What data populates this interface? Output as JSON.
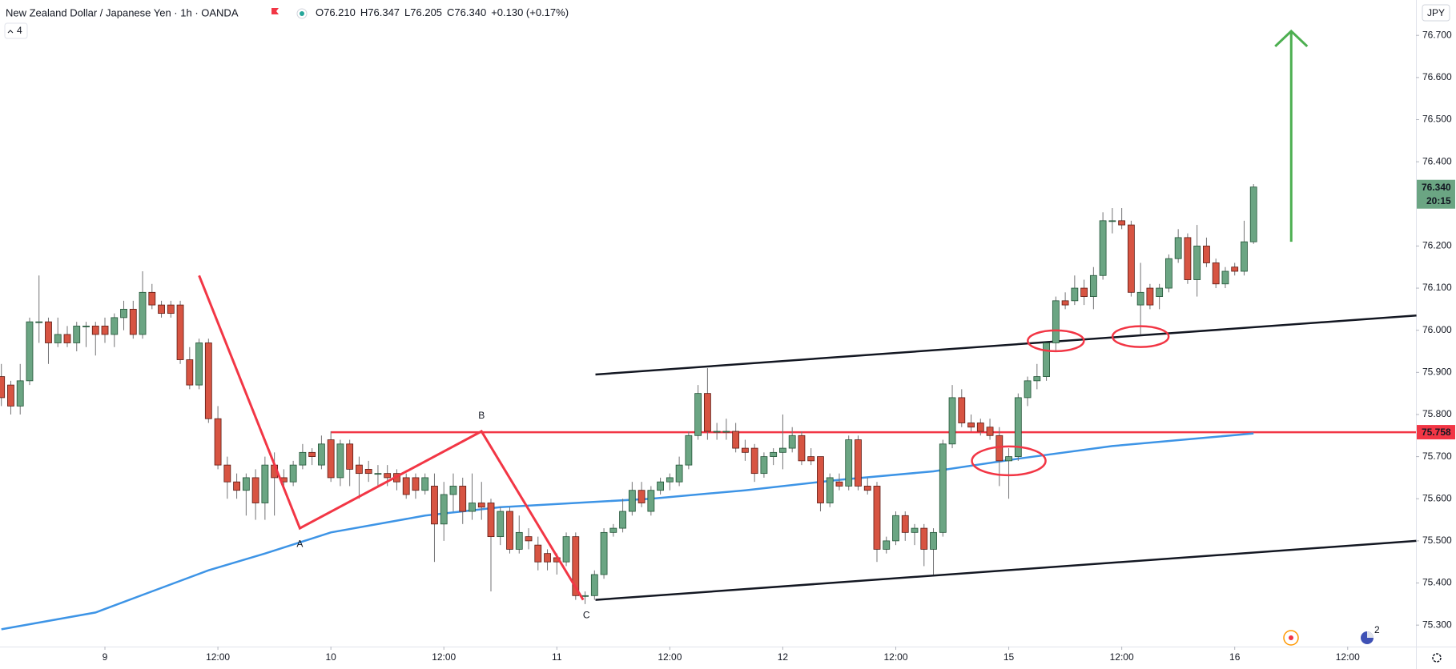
{
  "chart_data": {
    "type": "candlestick",
    "title": "New Zealand Dollar / Japanese Yen · 1h · OANDA",
    "legend_values": [
      "O76.210",
      "H76.347",
      "L76.205",
      "C76.340",
      "+0.130 (+0.17%)"
    ],
    "currency": "JPY",
    "indicator_count": 4,
    "up_color": "#6ba583",
    "up_border": "#225437",
    "down_color": "#d75442",
    "down_border": "#5b1a13",
    "wick_color": "#737375",
    "grid": false,
    "ohlc": [
      [
        75.89,
        75.92,
        75.82,
        75.84
      ],
      [
        75.87,
        75.88,
        75.8,
        75.82
      ],
      [
        75.82,
        75.92,
        75.8,
        75.88
      ],
      [
        75.88,
        76.03,
        75.87,
        76.02
      ],
      [
        76.02,
        76.13,
        75.97,
        76.02
      ],
      [
        76.02,
        76.03,
        75.92,
        75.97
      ],
      [
        75.97,
        76.03,
        75.96,
        75.99
      ],
      [
        75.99,
        76.01,
        75.96,
        75.97
      ],
      [
        75.97,
        76.02,
        75.95,
        76.01
      ],
      [
        76.01,
        76.02,
        75.96,
        76.01
      ],
      [
        76.01,
        76.02,
        75.94,
        75.99
      ],
      [
        76.01,
        76.03,
        75.97,
        75.99
      ],
      [
        75.99,
        76.04,
        75.96,
        76.03
      ],
      [
        76.03,
        76.07,
        76.0,
        76.05
      ],
      [
        76.05,
        76.07,
        75.98,
        75.99
      ],
      [
        75.99,
        76.14,
        75.98,
        76.09
      ],
      [
        76.09,
        76.11,
        76.05,
        76.06
      ],
      [
        76.06,
        76.07,
        76.03,
        76.04
      ],
      [
        76.06,
        76.07,
        76.03,
        76.04
      ],
      [
        76.06,
        76.07,
        75.92,
        75.93
      ],
      [
        75.93,
        75.96,
        75.86,
        75.87
      ],
      [
        75.87,
        75.98,
        75.86,
        75.97
      ],
      [
        75.97,
        75.98,
        75.78,
        75.79
      ],
      [
        75.79,
        75.82,
        75.67,
        75.68
      ],
      [
        75.68,
        75.7,
        75.6,
        75.64
      ],
      [
        75.64,
        75.66,
        75.6,
        75.62
      ],
      [
        75.62,
        75.66,
        75.56,
        75.65
      ],
      [
        75.65,
        75.67,
        75.55,
        75.59
      ],
      [
        75.59,
        75.7,
        75.55,
        75.68
      ],
      [
        75.68,
        75.71,
        75.56,
        75.65
      ],
      [
        75.65,
        75.67,
        75.62,
        75.64
      ],
      [
        75.64,
        75.69,
        75.63,
        75.68
      ],
      [
        75.68,
        75.73,
        75.67,
        75.71
      ],
      [
        75.71,
        75.72,
        75.68,
        75.7
      ],
      [
        75.68,
        75.75,
        75.67,
        75.73
      ],
      [
        75.74,
        75.76,
        75.64,
        75.65
      ],
      [
        75.65,
        75.74,
        75.63,
        75.73
      ],
      [
        75.73,
        75.74,
        75.63,
        75.67
      ],
      [
        75.68,
        75.7,
        75.6,
        75.66
      ],
      [
        75.67,
        75.69,
        75.64,
        75.66
      ],
      [
        75.66,
        75.68,
        75.63,
        75.66
      ],
      [
        75.66,
        75.68,
        75.63,
        75.65
      ],
      [
        75.66,
        75.67,
        75.62,
        75.64
      ],
      [
        75.65,
        75.66,
        75.6,
        75.61
      ],
      [
        75.65,
        75.66,
        75.6,
        75.62
      ],
      [
        75.62,
        75.66,
        75.61,
        75.65
      ],
      [
        75.63,
        75.66,
        75.45,
        75.54
      ],
      [
        75.54,
        75.64,
        75.5,
        75.61
      ],
      [
        75.61,
        75.66,
        75.57,
        75.63
      ],
      [
        75.63,
        75.65,
        75.54,
        75.57
      ],
      [
        75.57,
        75.66,
        75.55,
        75.59
      ],
      [
        75.59,
        75.64,
        75.55,
        75.58
      ],
      [
        75.59,
        75.6,
        75.38,
        75.51
      ],
      [
        75.51,
        75.58,
        75.49,
        75.57
      ],
      [
        75.57,
        75.58,
        75.47,
        75.48
      ],
      [
        75.48,
        75.56,
        75.47,
        75.52
      ],
      [
        75.51,
        75.53,
        75.48,
        75.5
      ],
      [
        75.49,
        75.51,
        75.43,
        75.45
      ],
      [
        75.47,
        75.48,
        75.43,
        75.45
      ],
      [
        75.46,
        75.47,
        75.42,
        75.45
      ],
      [
        75.45,
        75.52,
        75.44,
        75.51
      ],
      [
        75.51,
        75.52,
        75.36,
        75.37
      ],
      [
        75.37,
        75.38,
        75.35,
        75.37
      ],
      [
        75.37,
        75.43,
        75.36,
        75.42
      ],
      [
        75.42,
        75.53,
        75.41,
        75.52
      ],
      [
        75.52,
        75.54,
        75.51,
        75.53
      ],
      [
        75.53,
        75.6,
        75.52,
        75.57
      ],
      [
        75.57,
        75.64,
        75.56,
        75.62
      ],
      [
        75.62,
        75.64,
        75.58,
        75.59
      ],
      [
        75.57,
        75.63,
        75.56,
        75.62
      ],
      [
        75.62,
        75.65,
        75.61,
        75.64
      ],
      [
        75.64,
        75.66,
        75.62,
        75.65
      ],
      [
        75.64,
        75.7,
        75.63,
        75.68
      ],
      [
        75.68,
        75.76,
        75.67,
        75.75
      ],
      [
        75.75,
        75.87,
        75.74,
        75.85
      ],
      [
        75.85,
        75.91,
        75.74,
        75.76
      ],
      [
        75.76,
        75.78,
        75.74,
        75.76
      ],
      [
        75.76,
        75.79,
        75.74,
        75.76
      ],
      [
        75.76,
        75.78,
        75.71,
        75.72
      ],
      [
        75.72,
        75.74,
        75.69,
        75.71
      ],
      [
        75.72,
        75.73,
        75.64,
        75.66
      ],
      [
        75.66,
        75.71,
        75.65,
        75.7
      ],
      [
        75.7,
        75.72,
        75.68,
        75.71
      ],
      [
        75.71,
        75.8,
        75.67,
        75.72
      ],
      [
        75.72,
        75.77,
        75.71,
        75.75
      ],
      [
        75.75,
        75.76,
        75.68,
        75.69
      ],
      [
        75.7,
        75.72,
        75.68,
        75.69
      ],
      [
        75.7,
        75.7,
        75.57,
        75.59
      ],
      [
        75.59,
        75.66,
        75.58,
        75.65
      ],
      [
        75.64,
        75.66,
        75.62,
        75.63
      ],
      [
        75.63,
        75.75,
        75.62,
        75.74
      ],
      [
        75.74,
        75.75,
        75.62,
        75.63
      ],
      [
        75.63,
        75.65,
        75.61,
        75.62
      ],
      [
        75.63,
        75.64,
        75.45,
        75.48
      ],
      [
        75.48,
        75.51,
        75.47,
        75.5
      ],
      [
        75.5,
        75.57,
        75.49,
        75.56
      ],
      [
        75.56,
        75.57,
        75.5,
        75.52
      ],
      [
        75.52,
        75.54,
        75.49,
        75.53
      ],
      [
        75.53,
        75.54,
        75.44,
        75.48
      ],
      [
        75.48,
        75.53,
        75.42,
        75.52
      ],
      [
        75.52,
        75.74,
        75.51,
        75.73
      ],
      [
        75.73,
        75.87,
        75.72,
        75.84
      ],
      [
        75.84,
        75.86,
        75.77,
        75.78
      ],
      [
        75.78,
        75.8,
        75.76,
        75.77
      ],
      [
        75.78,
        75.79,
        75.75,
        75.76
      ],
      [
        75.77,
        75.79,
        75.74,
        75.75
      ],
      [
        75.75,
        75.77,
        75.63,
        75.69
      ],
      [
        75.69,
        75.72,
        75.6,
        75.7
      ],
      [
        75.7,
        75.85,
        75.69,
        75.84
      ],
      [
        75.84,
        75.89,
        75.82,
        75.88
      ],
      [
        75.88,
        75.92,
        75.86,
        75.89
      ],
      [
        75.89,
        75.97,
        75.88,
        75.97
      ],
      [
        75.97,
        76.08,
        75.95,
        76.07
      ],
      [
        76.07,
        76.09,
        76.05,
        76.06
      ],
      [
        76.07,
        76.13,
        76.06,
        76.1
      ],
      [
        76.1,
        76.12,
        76.06,
        76.08
      ],
      [
        76.08,
        76.15,
        76.05,
        76.13
      ],
      [
        76.13,
        76.28,
        76.12,
        76.26
      ],
      [
        76.26,
        76.29,
        76.23,
        76.26
      ],
      [
        76.26,
        76.29,
        76.24,
        76.25
      ],
      [
        76.25,
        76.26,
        76.08,
        76.09
      ],
      [
        76.06,
        76.16,
        75.99,
        76.09
      ],
      [
        76.1,
        76.11,
        76.05,
        76.06
      ],
      [
        76.08,
        76.11,
        76.05,
        76.1
      ],
      [
        76.1,
        76.18,
        76.09,
        76.17
      ],
      [
        76.17,
        76.24,
        76.16,
        76.22
      ],
      [
        76.22,
        76.23,
        76.11,
        76.12
      ],
      [
        76.12,
        76.25,
        76.08,
        76.2
      ],
      [
        76.2,
        76.22,
        76.15,
        76.16
      ],
      [
        76.16,
        76.17,
        76.1,
        76.11
      ],
      [
        76.11,
        76.15,
        76.1,
        76.14
      ],
      [
        76.15,
        76.16,
        76.13,
        76.14
      ],
      [
        76.14,
        76.26,
        76.13,
        76.21
      ],
      [
        76.21,
        76.347,
        76.205,
        76.34
      ]
    ],
    "moving_average": {
      "color": "#3d94e6",
      "x": [
        0,
        10,
        16,
        22,
        28,
        35,
        45,
        53,
        61,
        69,
        79,
        89,
        99,
        108,
        118,
        128,
        133
      ],
      "values": [
        75.29,
        75.33,
        75.38,
        75.43,
        75.47,
        75.52,
        75.56,
        75.58,
        75.59,
        75.6,
        75.62,
        75.645,
        75.665,
        75.695,
        75.725,
        75.745,
        75.755
      ]
    },
    "xlim": [
      -0.145,
      150.25
    ],
    "xticks": [
      {
        "value": 11,
        "label": "9"
      },
      {
        "value": 23,
        "label": "12:00"
      },
      {
        "value": 35,
        "label": "10"
      },
      {
        "value": 47,
        "label": "12:00"
      },
      {
        "value": 59,
        "label": "11"
      },
      {
        "value": 71,
        "label": "12:00"
      },
      {
        "value": 83,
        "label": "12"
      },
      {
        "value": 95,
        "label": "12:00"
      },
      {
        "value": 107,
        "label": "15"
      },
      {
        "value": 119,
        "label": "12:00"
      },
      {
        "value": 131,
        "label": "16"
      },
      {
        "value": 143,
        "label": "12:00"
      }
    ],
    "ylim": [
      75.249,
      76.784
    ],
    "yticks": [
      {
        "value": 75.3,
        "label": "75.300"
      },
      {
        "value": 75.4,
        "label": "75.400"
      },
      {
        "value": 75.5,
        "label": "75.500"
      },
      {
        "value": 75.6,
        "label": "75.600"
      },
      {
        "value": 75.7,
        "label": "75.700"
      },
      {
        "value": 75.8,
        "label": "75.800"
      },
      {
        "value": 75.9,
        "label": "75.900"
      },
      {
        "value": 76,
        "label": "76.000"
      },
      {
        "value": 76.1,
        "label": "76.100"
      },
      {
        "value": 76.2,
        "label": "76.200"
      },
      {
        "value": 76.4,
        "label": "76.400"
      },
      {
        "value": 76.5,
        "label": "76.500"
      },
      {
        "value": 76.6,
        "label": "76.600"
      },
      {
        "value": 76.7,
        "label": "76.700"
      }
    ],
    "last_price": {
      "value": 76.34,
      "label": "76.340",
      "countdown": "20:15",
      "color": "#6ba583"
    },
    "level": {
      "value": 75.758,
      "x": 35,
      "color": "#f23645"
    },
    "zigzag": {
      "color": "#f23645",
      "x": [
        21,
        31.7,
        51,
        61.8
      ],
      "values": [
        76.13,
        75.53,
        75.76,
        75.36
      ],
      "labels": [
        null,
        "A",
        "B",
        "C"
      ]
    },
    "trendline_color": "#131722",
    "trendlines": [
      {
        "x": [
          63.1,
          150.3
        ],
        "values": [
          75.895,
          76.035
        ]
      },
      {
        "x": [
          63.1,
          150.3
        ],
        "values": [
          75.36,
          75.5
        ]
      }
    ],
    "ellipses": {
      "color": "#f23645",
      "x": [
        112,
        121,
        107
      ],
      "values": [
        75.975,
        75.985,
        75.69
      ]
    },
    "arrow": {
      "color": "#4caf50",
      "x": 137,
      "values": [
        76.21,
        76.71
      ]
    }
  }
}
